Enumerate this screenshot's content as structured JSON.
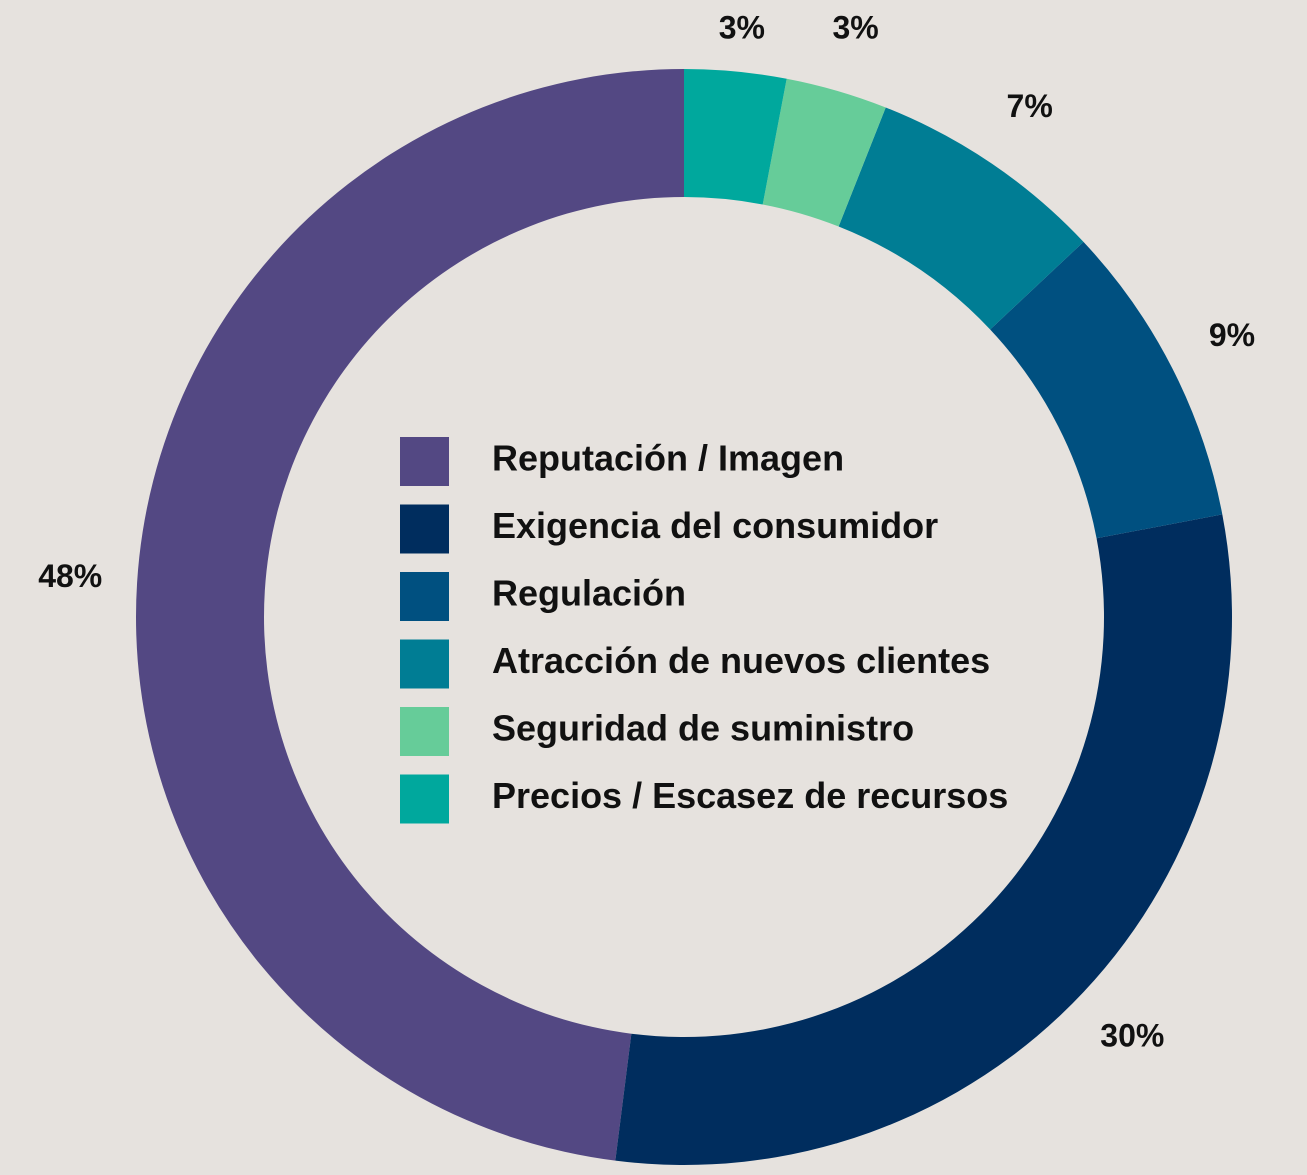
{
  "chart_data": {
    "type": "donut",
    "categories": [
      "Reputación / Imagen",
      "Exigencia del consumidor",
      "Regulación",
      "Atracción de nuevos clientes",
      "Seguridad de suministro",
      "Precios / Escasez de recursos"
    ],
    "values": [
      48,
      30,
      9,
      7,
      3,
      3
    ],
    "value_labels": [
      "48%",
      "30%",
      "9%",
      "7%",
      "3%",
      "3%"
    ],
    "colors": [
      "#534883",
      "#002d5e",
      "#005080",
      "#007d94",
      "#66cc99",
      "#00a89d"
    ]
  }
}
